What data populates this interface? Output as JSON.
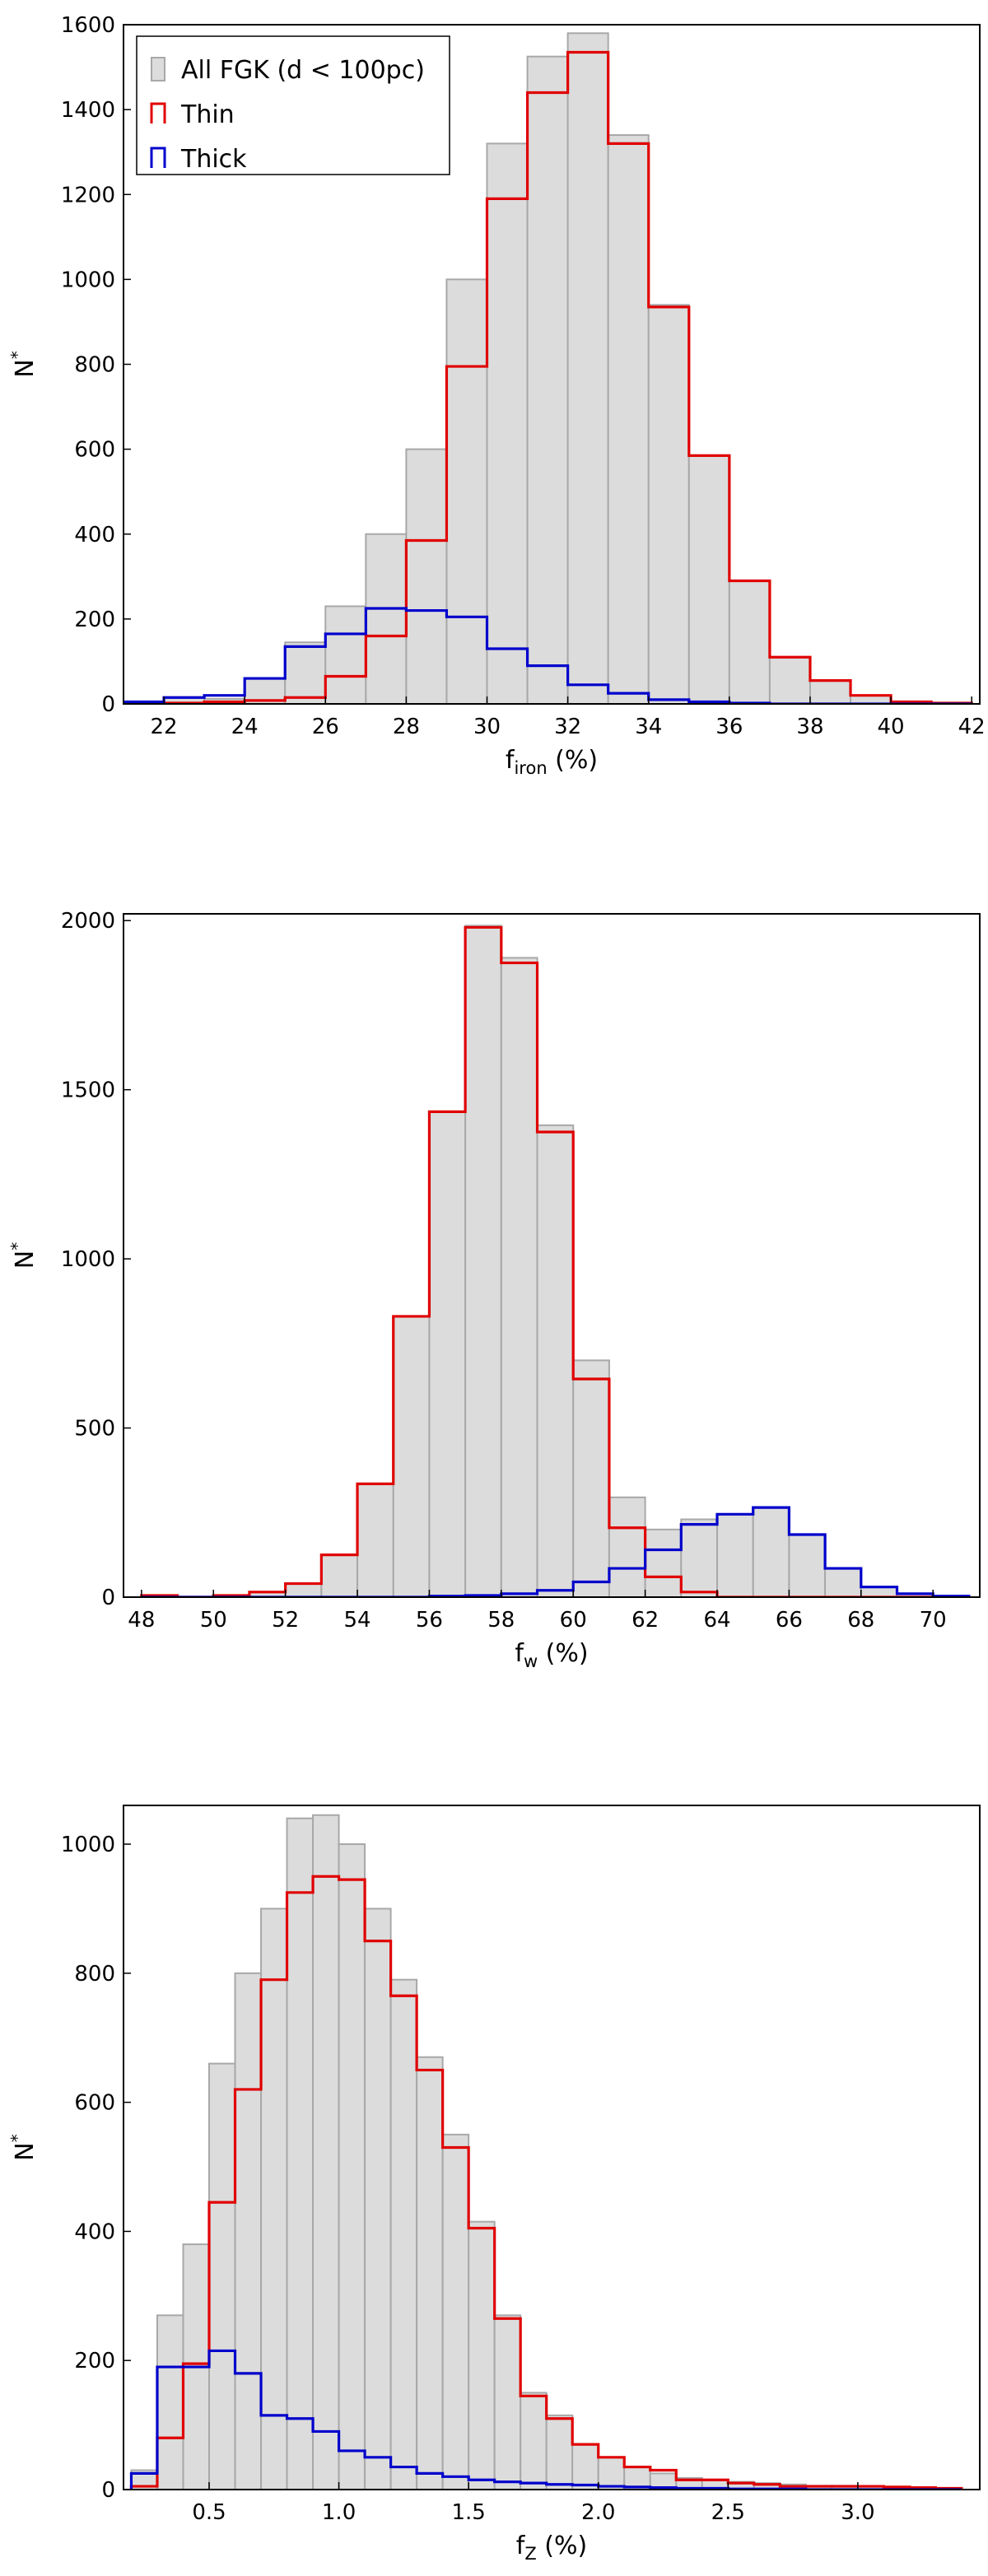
{
  "chart_data": [
    {
      "type": "histogram",
      "xlabel": "f_iron (%)",
      "xlabel_main": "f",
      "xlabel_sub": "iron",
      "xlabel_tail": " (%)",
      "ylabel": "N*",
      "ylabel_main": "N",
      "ylabel_sup": "*",
      "xlim": [
        21,
        42.2
      ],
      "ylim": [
        0,
        1600
      ],
      "xticks": [
        22,
        24,
        26,
        28,
        30,
        32,
        34,
        36,
        38,
        40,
        42
      ],
      "yticks": [
        0,
        200,
        400,
        600,
        800,
        1000,
        1200,
        1400,
        1600
      ],
      "legend": {
        "placement": "top-left",
        "entries": [
          {
            "label": "All FGK (d < 100pc)",
            "series": "all"
          },
          {
            "label": "Thin",
            "series": "thin"
          },
          {
            "label": "Thick",
            "series": "thick"
          }
        ]
      },
      "bin_edges": [
        21,
        22,
        23,
        24,
        25,
        26,
        27,
        28,
        29,
        30,
        31,
        32,
        33,
        34,
        35,
        36,
        37,
        38,
        39,
        40,
        41,
        42
      ],
      "series": [
        {
          "name": "All FGK (d < 100pc)",
          "key": "all",
          "style": "filled",
          "color": "#dcdcdc",
          "edge": "#a8a8a8",
          "values": [
            2,
            15,
            12,
            60,
            145,
            230,
            400,
            600,
            1000,
            1320,
            1525,
            1580,
            1340,
            940,
            585,
            290,
            110,
            55,
            20,
            5,
            2
          ]
        },
        {
          "name": "Thin",
          "key": "thin",
          "style": "step",
          "color": "#e00000",
          "values": [
            0,
            2,
            5,
            8,
            15,
            65,
            160,
            385,
            795,
            1190,
            1440,
            1535,
            1320,
            935,
            585,
            290,
            110,
            55,
            20,
            5,
            2
          ]
        },
        {
          "name": "Thick",
          "key": "thick",
          "style": "step",
          "color": "#0000cc",
          "values": [
            5,
            15,
            20,
            60,
            135,
            165,
            225,
            220,
            205,
            130,
            90,
            45,
            25,
            10,
            5,
            2,
            0,
            0,
            0,
            0,
            0
          ]
        }
      ]
    },
    {
      "type": "histogram",
      "xlabel": "f_w (%)",
      "xlabel_main": "f",
      "xlabel_sub": "w",
      "xlabel_tail": " (%)",
      "ylabel": "N*",
      "ylabel_main": "N",
      "ylabel_sup": "*",
      "xlim": [
        47.5,
        71.3
      ],
      "ylim": [
        0,
        2020
      ],
      "xticks": [
        48,
        50,
        52,
        54,
        56,
        58,
        60,
        62,
        64,
        66,
        68,
        70
      ],
      "yticks": [
        0,
        500,
        1000,
        1500,
        2000
      ],
      "bin_edges": [
        48,
        49,
        50,
        51,
        52,
        53,
        54,
        55,
        56,
        57,
        58,
        59,
        60,
        61,
        62,
        63,
        64,
        65,
        66,
        67,
        68,
        69,
        70,
        71
      ],
      "series": [
        {
          "name": "All",
          "key": "all",
          "style": "filled",
          "color": "#dcdcdc",
          "edge": "#a8a8a8",
          "values": [
            5,
            0,
            5,
            15,
            40,
            125,
            335,
            830,
            1435,
            1985,
            1890,
            1395,
            700,
            295,
            200,
            230,
            245,
            265,
            185,
            85,
            30,
            10,
            3
          ]
        },
        {
          "name": "Thin",
          "key": "thin",
          "style": "step",
          "color": "#e00000",
          "values": [
            5,
            0,
            5,
            15,
            40,
            125,
            335,
            830,
            1435,
            1980,
            1875,
            1375,
            645,
            205,
            60,
            15,
            0,
            0,
            0,
            0,
            0,
            0,
            0
          ]
        },
        {
          "name": "Thick",
          "key": "thick",
          "style": "step",
          "color": "#0000cc",
          "values": [
            0,
            0,
            0,
            0,
            0,
            0,
            0,
            0,
            3,
            5,
            10,
            20,
            45,
            85,
            140,
            215,
            245,
            265,
            185,
            85,
            30,
            10,
            3
          ]
        }
      ]
    },
    {
      "type": "histogram",
      "xlabel": "f_Z (%)",
      "xlabel_main": "f",
      "xlabel_sub": "Z",
      "xlabel_tail": " (%)",
      "ylabel": "N*",
      "ylabel_main": "N",
      "ylabel_sup": "*",
      "xlim": [
        0.17,
        3.47
      ],
      "ylim": [
        0,
        1060
      ],
      "xticks": [
        0.5,
        1.0,
        1.5,
        2.0,
        2.5,
        3.0
      ],
      "xtick_labels": [
        "0.5",
        "1.0",
        "1.5",
        "2.0",
        "2.5",
        "3.0"
      ],
      "yticks": [
        0,
        200,
        400,
        600,
        800,
        1000
      ],
      "bin_edges": [
        0.2,
        0.3,
        0.4,
        0.5,
        0.6,
        0.7,
        0.8,
        0.9,
        1.0,
        1.1,
        1.2,
        1.3,
        1.4,
        1.5,
        1.6,
        1.7,
        1.8,
        1.9,
        2.0,
        2.1,
        2.2,
        2.3,
        2.4,
        2.5,
        2.6,
        2.7,
        2.8,
        2.9,
        3.0,
        3.1,
        3.2,
        3.3,
        3.4
      ],
      "series": [
        {
          "name": "All",
          "key": "all",
          "style": "filled",
          "color": "#dcdcdc",
          "edge": "#a8a8a8",
          "values": [
            30,
            270,
            380,
            660,
            800,
            900,
            1040,
            1045,
            1000,
            900,
            790,
            670,
            550,
            415,
            270,
            150,
            115,
            70,
            50,
            35,
            25,
            18,
            15,
            12,
            10,
            8,
            6,
            6,
            5,
            4,
            3,
            2
          ]
        },
        {
          "name": "Thin",
          "key": "thin",
          "style": "step",
          "color": "#e00000",
          "values": [
            5,
            80,
            195,
            445,
            620,
            790,
            925,
            950,
            945,
            850,
            765,
            650,
            530,
            405,
            265,
            145,
            110,
            70,
            50,
            35,
            30,
            15,
            15,
            10,
            8,
            5,
            5,
            5,
            5,
            4,
            3,
            2
          ]
        },
        {
          "name": "Thick",
          "key": "thick",
          "style": "step",
          "color": "#0000cc",
          "values": [
            25,
            190,
            190,
            215,
            180,
            115,
            110,
            90,
            60,
            50,
            35,
            25,
            20,
            15,
            12,
            10,
            8,
            7,
            5,
            4,
            3,
            2,
            2,
            1,
            1,
            1,
            0,
            0,
            0,
            0,
            0,
            0
          ]
        }
      ]
    }
  ]
}
